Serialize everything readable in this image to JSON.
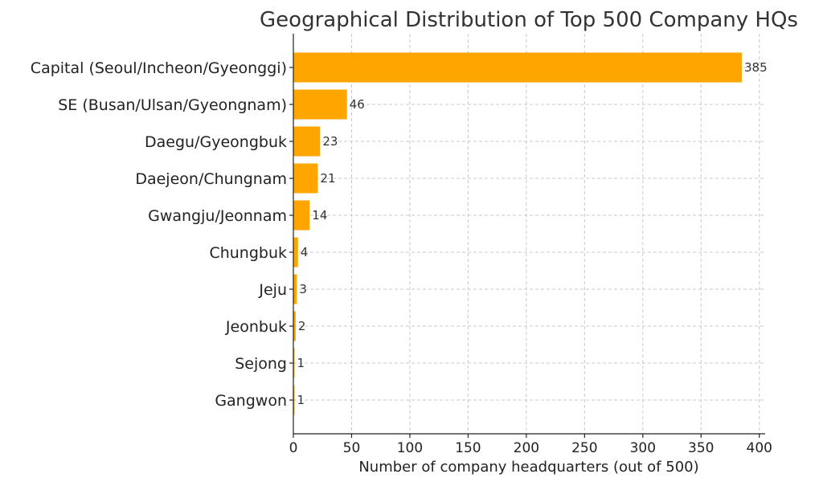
{
  "chart_data": {
    "type": "bar",
    "orientation": "horizontal",
    "title": "Geographical Distribution of Top 500 Company HQs",
    "xlabel": "Number of company headquarters (out of 500)",
    "ylabel": "",
    "categories": [
      "Capital (Seoul/Incheon/Gyeonggi)",
      "SE (Busan/Ulsan/Gyeongnam)",
      "Daegu/Gyeongbuk",
      "Daejeon/Chungnam",
      "Gwangju/Jeonnam",
      "Chungbuk",
      "Jeju",
      "Jeonbuk",
      "Sejong",
      "Gangwon"
    ],
    "values": [
      385,
      46,
      23,
      21,
      14,
      4,
      3,
      2,
      1,
      1
    ],
    "xlim": [
      0,
      405
    ],
    "xticks": [
      0,
      50,
      100,
      150,
      200,
      250,
      300,
      350,
      400
    ],
    "grid": true,
    "bar_color": "#FFA500"
  }
}
